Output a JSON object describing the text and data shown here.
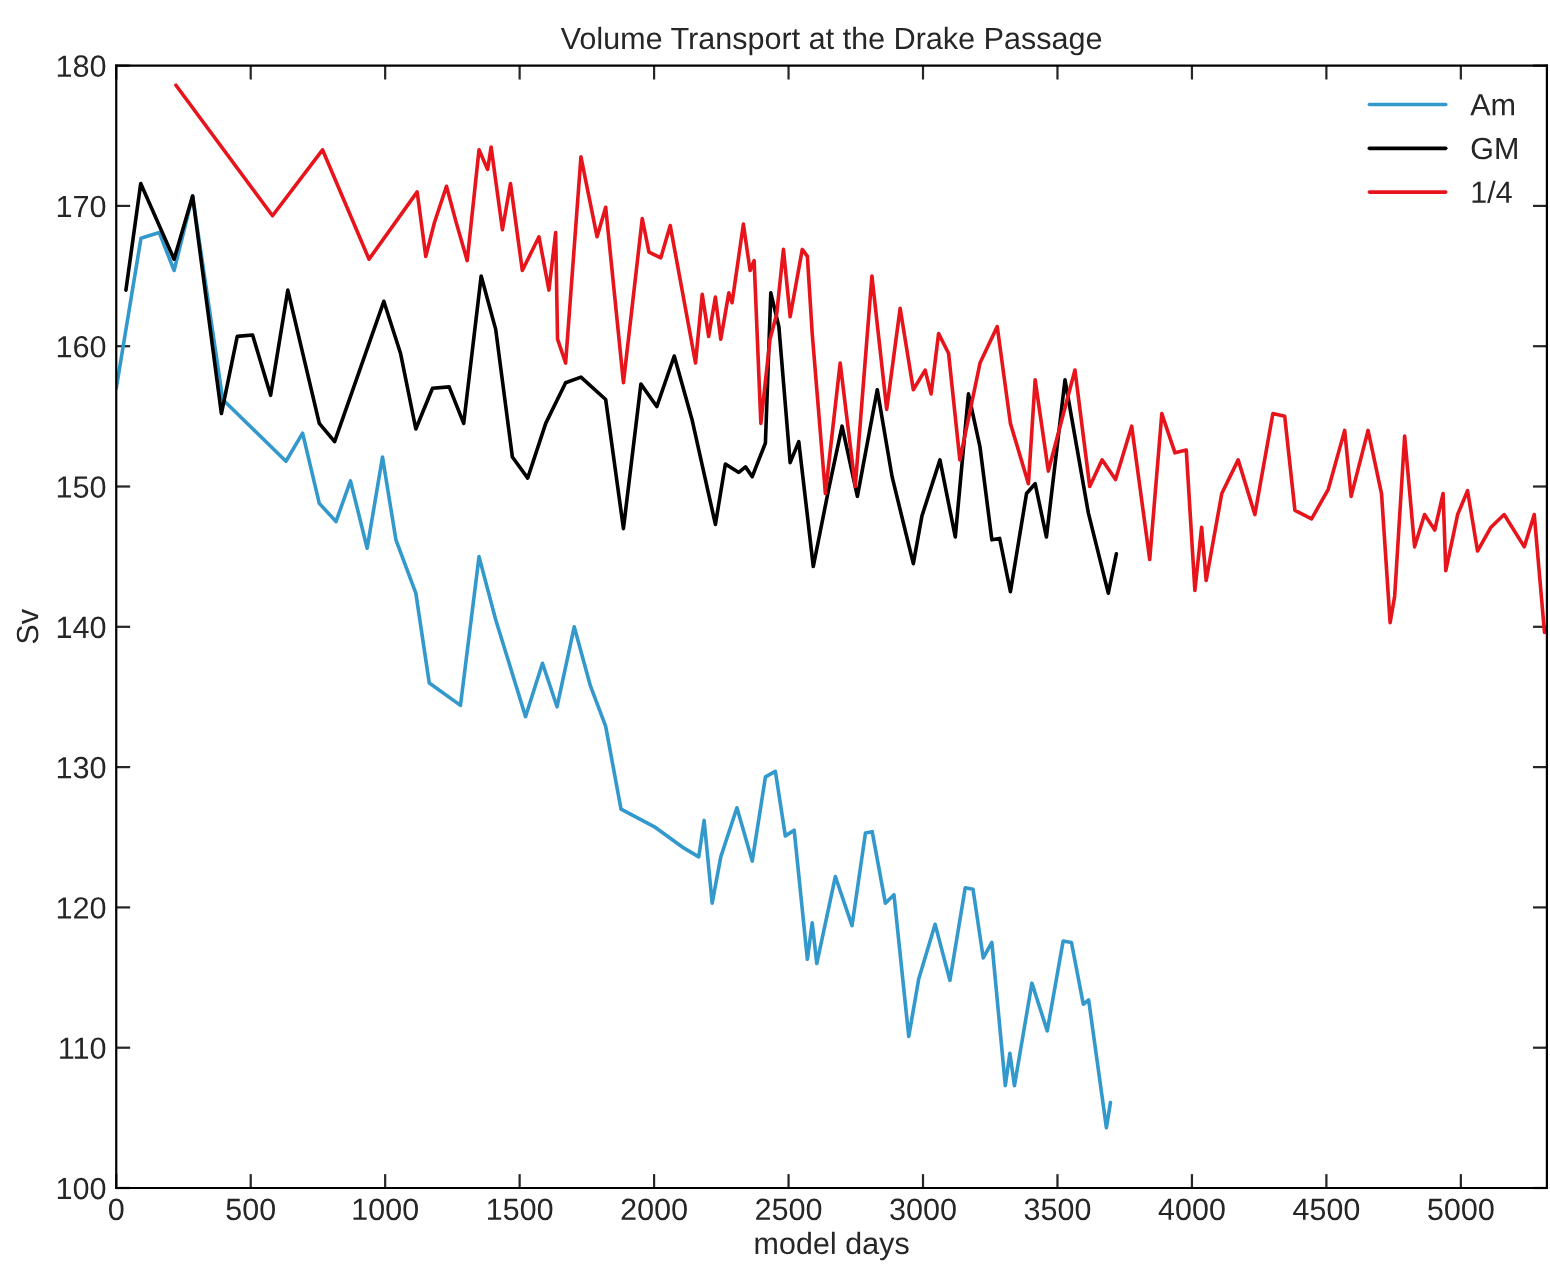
{
  "chart_data": {
    "type": "line",
    "title": "Volume Transport at the Drake Passage",
    "xlabel": "model days",
    "ylabel": "Sv",
    "xlim": [
      0,
      5320
    ],
    "xticks": [
      0,
      500,
      1000,
      1500,
      2000,
      2500,
      3000,
      3500,
      4000,
      4500,
      5000
    ],
    "ylim": [
      100,
      180
    ],
    "yticks": [
      100,
      110,
      120,
      130,
      140,
      150,
      160,
      170,
      180
    ],
    "grid": false,
    "legend": "top right",
    "series": [
      {
        "name": "Am",
        "color": "#3399cc",
        "x": [
          0,
          92,
          160,
          215,
          284,
          396,
          631,
          693,
          755,
          817,
          871,
          933,
          990,
          1040,
          1114,
          1164,
          1280,
          1349,
          1411,
          1522,
          1585,
          1639,
          1703,
          1763,
          1820,
          1877,
          2005,
          2105,
          2166,
          2186,
          2216,
          2248,
          2308,
          2365,
          2414,
          2451,
          2488,
          2521,
          2570,
          2588,
          2605,
          2674,
          2736,
          2786,
          2811,
          2860,
          2892,
          2947,
          2984,
          3045,
          3100,
          3157,
          3186,
          3224,
          3256,
          3306,
          3323,
          3340,
          3405,
          3462,
          3521,
          3552,
          3596,
          3616,
          3682,
          3697
        ],
        "values": [
          157,
          167.7,
          168.1,
          165.4,
          170.7,
          156.2,
          151.8,
          153.8,
          148.8,
          147.5,
          150.4,
          145.6,
          152.1,
          146.2,
          142.4,
          136.0,
          134.4,
          145.0,
          140.5,
          133.6,
          137.4,
          134.3,
          140.0,
          135.8,
          132.9,
          127.0,
          125.7,
          124.3,
          123.6,
          126.2,
          120.3,
          123.6,
          127.1,
          123.3,
          129.3,
          129.7,
          125.1,
          125.5,
          116.3,
          118.9,
          116.0,
          122.2,
          118.7,
          125.3,
          125.4,
          120.3,
          120.9,
          110.8,
          114.9,
          118.8,
          114.8,
          121.4,
          121.3,
          116.4,
          117.5,
          107.3,
          109.6,
          107.3,
          114.6,
          111.2,
          117.6,
          117.5,
          113.1,
          113.4,
          104.3,
          106.1
        ]
      },
      {
        "name": "GM",
        "color": "#000000",
        "x": [
          36,
          91,
          215,
          284,
          391,
          450,
          507,
          574,
          638,
          755,
          812,
          995,
          1057,
          1114,
          1176,
          1238,
          1292,
          1357,
          1411,
          1473,
          1530,
          1597,
          1671,
          1728,
          1820,
          1886,
          1951,
          2010,
          2075,
          2142,
          2228,
          2265,
          2315,
          2340,
          2365,
          2414,
          2434,
          2464,
          2506,
          2538,
          2592,
          2649,
          2699,
          2756,
          2830,
          2885,
          2964,
          2996,
          3063,
          3120,
          3169,
          3212,
          3256,
          3285,
          3325,
          3385,
          3417,
          3459,
          3528,
          3615,
          3689,
          3719
        ],
        "values": [
          164.0,
          171.6,
          166.2,
          170.7,
          155.2,
          160.7,
          160.8,
          156.5,
          164.0,
          154.5,
          153.2,
          163.2,
          159.5,
          154.1,
          157.0,
          157.1,
          154.5,
          165.0,
          161.2,
          152.1,
          150.6,
          154.5,
          157.4,
          157.8,
          156.2,
          147.0,
          157.3,
          155.7,
          159.3,
          154.7,
          147.3,
          151.6,
          151.0,
          151.4,
          150.7,
          153.1,
          163.8,
          161.4,
          151.7,
          153.2,
          144.3,
          149.8,
          154.3,
          149.3,
          156.9,
          150.7,
          144.5,
          147.9,
          151.9,
          146.4,
          156.6,
          152.8,
          146.2,
          146.3,
          142.5,
          149.5,
          150.2,
          146.4,
          157.6,
          148.1,
          142.4,
          145.2
        ]
      },
      {
        "name": "1/4",
        "color": "#e8141c",
        "x": [
          222,
          581,
          767,
          940,
          1119,
          1151,
          1183,
          1228,
          1263,
          1305,
          1349,
          1381,
          1394,
          1436,
          1466,
          1510,
          1572,
          1609,
          1634,
          1641,
          1671,
          1728,
          1788,
          1820,
          1886,
          1956,
          1981,
          2025,
          2060,
          2154,
          2179,
          2203,
          2228,
          2248,
          2278,
          2290,
          2332,
          2357,
          2372,
          2397,
          2431,
          2456,
          2481,
          2506,
          2551,
          2570,
          2588,
          2637,
          2692,
          2748,
          2810,
          2865,
          2915,
          2964,
          3008,
          3030,
          3058,
          3095,
          3137,
          3212,
          3276,
          3325,
          3392,
          3417,
          3466,
          3565,
          3620,
          3666,
          3716,
          3776,
          3843,
          3888,
          3937,
          3979,
          4011,
          4036,
          4053,
          4111,
          4172,
          4234,
          4301,
          4345,
          4383,
          4445,
          4507,
          4568,
          4592,
          4655,
          4705,
          4737,
          4754,
          4791,
          4828,
          4865,
          4903,
          4934,
          4944,
          4988,
          5025,
          5062,
          5112,
          5161,
          5236,
          5273,
          5311
        ],
        "values": [
          178.6,
          169.3,
          174.0,
          166.2,
          171.0,
          166.4,
          168.8,
          171.4,
          168.9,
          166.1,
          174.0,
          172.6,
          174.2,
          168.3,
          171.6,
          165.4,
          167.8,
          164.0,
          168.1,
          160.5,
          158.8,
          173.5,
          167.8,
          169.9,
          157.4,
          169.1,
          166.7,
          166.3,
          168.6,
          158.8,
          163.7,
          160.7,
          163.5,
          160.5,
          163.8,
          163.1,
          168.7,
          165.4,
          166.1,
          154.5,
          160.5,
          162.3,
          166.9,
          162.1,
          166.9,
          166.4,
          160.9,
          149.5,
          158.8,
          150.0,
          165.0,
          155.5,
          162.7,
          156.9,
          158.3,
          156.6,
          160.9,
          159.5,
          151.9,
          158.8,
          161.4,
          154.5,
          150.2,
          157.6,
          151.1,
          158.3,
          150.0,
          151.9,
          150.5,
          154.3,
          144.8,
          155.2,
          152.4,
          152.6,
          142.6,
          147.1,
          143.3,
          149.5,
          151.9,
          148.0,
          155.2,
          155.0,
          148.3,
          147.7,
          149.8,
          154.0,
          149.3,
          154.0,
          149.5,
          140.3,
          142.2,
          153.6,
          145.7,
          148.0,
          146.9,
          149.5,
          144.0,
          148.0,
          149.7,
          145.4,
          147.1,
          148.0,
          145.7,
          148.0,
          139.6
        ]
      }
    ]
  }
}
